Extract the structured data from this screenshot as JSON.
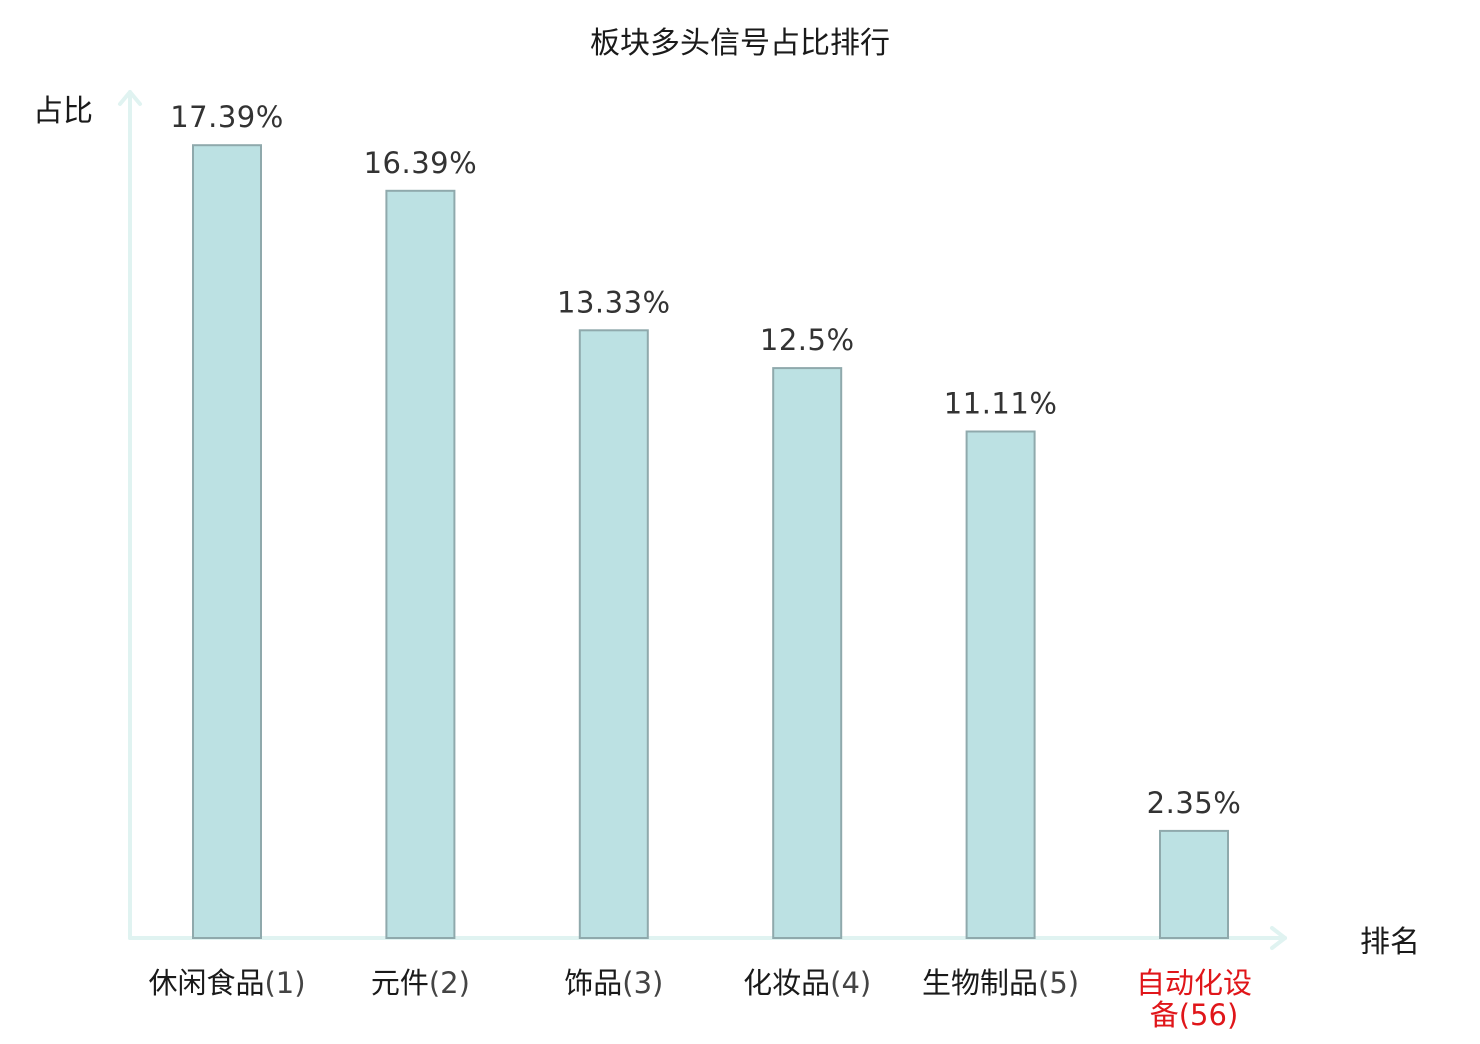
{
  "chart_data": {
    "type": "bar",
    "title": "板块多头信号占比排行",
    "ylabel": "占比",
    "xlabel": "排名",
    "ylim": [
      0,
      18.6
    ],
    "grid": false,
    "legend": "none",
    "categories": [
      {
        "name": "休闲食品",
        "rank": "(1)",
        "highlight": false
      },
      {
        "name": "元件",
        "rank": "(2)",
        "highlight": false
      },
      {
        "name": "饰品",
        "rank": "(3)",
        "highlight": false
      },
      {
        "name": "化妆品",
        "rank": "(4)",
        "highlight": false
      },
      {
        "name": "生物制品",
        "rank": "(5)",
        "highlight": false
      },
      {
        "name": "自动化设备",
        "rank": "(56)",
        "highlight": true
      }
    ],
    "values": [
      17.39,
      16.39,
      13.33,
      12.5,
      11.11,
      2.35
    ],
    "value_labels": [
      "17.39%",
      "16.39%",
      "13.33%",
      "12.5%",
      "11.11%",
      "2.35%"
    ],
    "colors": {
      "bar_fill": "#bce1e3",
      "bar_stroke": "#8fa9ac",
      "axis": "#e0f3f1",
      "label": "#1a1a1a",
      "value_label": "#333333",
      "rank_label": "#444444",
      "highlight": "#e0161a"
    }
  }
}
